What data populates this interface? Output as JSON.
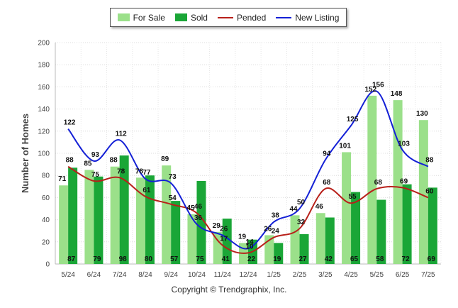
{
  "chart_data": {
    "type": "bar",
    "ylabel": "Number of Homes",
    "ylim": [
      0,
      200
    ],
    "yticks": [
      "0",
      "20",
      "40",
      "60",
      "80",
      "100",
      "120",
      "140",
      "160",
      "180",
      "200"
    ],
    "categories": [
      "5/24",
      "6/24",
      "7/24",
      "8/24",
      "9/24",
      "10/24",
      "11/24",
      "12/24",
      "1/25",
      "2/25",
      "3/25",
      "4/25",
      "5/25",
      "6/25",
      "7/25"
    ],
    "grid": true,
    "legend_position": "top-center",
    "series": [
      {
        "name": "For Sale",
        "kind": "bar",
        "color": "#9be08a",
        "values": [
          71,
          85,
          88,
          78,
          89,
          45,
          29,
          19,
          26,
          44,
          46,
          101,
          152,
          148,
          130
        ]
      },
      {
        "name": "Sold",
        "kind": "bar",
        "color": "#1aa637",
        "values": [
          87,
          79,
          98,
          80,
          57,
          75,
          41,
          22,
          19,
          27,
          42,
          65,
          58,
          72,
          69
        ]
      },
      {
        "name": "Pended",
        "kind": "line",
        "color": "#b8201a",
        "values": [
          88,
          75,
          78,
          61,
          54,
          46,
          17,
          10,
          24,
          32,
          68,
          55,
          68,
          69,
          60
        ]
      },
      {
        "name": "New Listing",
        "kind": "line",
        "color": "#1420d6",
        "values": [
          122,
          93,
          112,
          77,
          73,
          36,
          26,
          14,
          38,
          50,
          94,
          125,
          156,
          103,
          88
        ]
      }
    ]
  },
  "legend": {
    "for_sale": "For Sale",
    "sold": "Sold",
    "pended": "Pended",
    "new_listing": "New Listing"
  },
  "footer": "Copyright © Trendgraphix, Inc."
}
